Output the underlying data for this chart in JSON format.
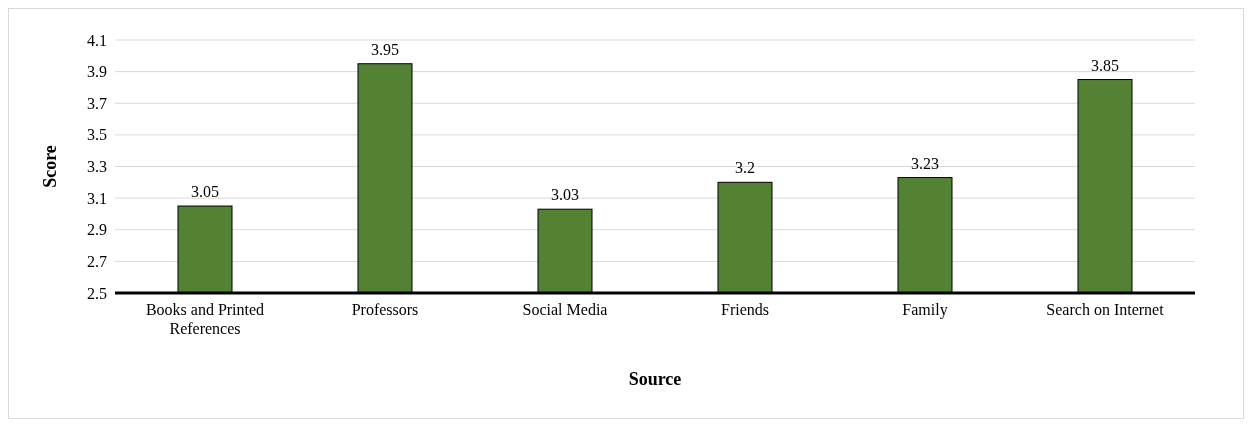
{
  "chart_data": {
    "type": "bar",
    "xlabel": "Source",
    "ylabel": "Score",
    "categories": [
      "Books and Printed References",
      "Professors",
      "Social Media",
      "Friends",
      "Family",
      "Search on Internet"
    ],
    "values": [
      3.05,
      3.95,
      3.03,
      3.2,
      3.23,
      3.85
    ],
    "color": "#548235",
    "ylim": [
      2.5,
      4.1
    ],
    "yticks": [
      2.5,
      2.7,
      2.9,
      3.1,
      3.3,
      3.5,
      3.7,
      3.9,
      4.1
    ],
    "grid": "y",
    "data_labels": true
  }
}
